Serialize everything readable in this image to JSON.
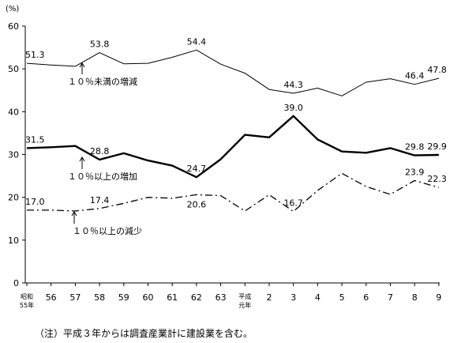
{
  "chart_data": {
    "type": "line",
    "y_unit": "(%)",
    "ylim": [
      0,
      60
    ],
    "yticks": [
      "0",
      "10",
      "20",
      "30",
      "40",
      "50",
      "60"
    ],
    "categories": [
      [
        "昭和",
        "55年"
      ],
      [
        "56"
      ],
      [
        "57"
      ],
      [
        "58"
      ],
      [
        "59"
      ],
      [
        "60"
      ],
      [
        "61"
      ],
      [
        "62"
      ],
      [
        "63"
      ],
      [
        "平成",
        "元年"
      ],
      [
        "2"
      ],
      [
        "3"
      ],
      [
        "4"
      ],
      [
        "5"
      ],
      [
        "6"
      ],
      [
        "7"
      ],
      [
        "8"
      ],
      [
        "9"
      ]
    ],
    "series": [
      {
        "name": "１０％未満の増減",
        "style": "thin",
        "values": [
          51.3,
          50.9,
          50.6,
          53.8,
          51.2,
          51.3,
          52.7,
          54.4,
          51.1,
          49.0,
          45.2,
          44.3,
          45.5,
          43.7,
          46.9,
          47.7,
          46.4,
          47.8
        ]
      },
      {
        "name": "１０％以上の増加",
        "style": "thick",
        "values": [
          31.5,
          31.7,
          32.0,
          28.8,
          30.3,
          28.6,
          27.4,
          24.7,
          28.9,
          34.6,
          34.0,
          39.0,
          33.5,
          30.7,
          30.4,
          31.5,
          29.8,
          29.9
        ]
      },
      {
        "name": "１０％以上の減少",
        "style": "dashdot",
        "values": [
          17.0,
          17.0,
          16.8,
          17.4,
          18.6,
          20.0,
          19.8,
          20.6,
          20.4,
          16.8,
          20.6,
          16.7,
          21.6,
          25.6,
          22.5,
          20.7,
          23.9,
          22.3
        ]
      }
    ],
    "data_labels": [
      {
        "series": 0,
        "index": 0,
        "text": "51.3"
      },
      {
        "series": 0,
        "index": 3,
        "text": "53.8"
      },
      {
        "series": 0,
        "index": 7,
        "text": "54.4"
      },
      {
        "series": 0,
        "index": 11,
        "text": "44.3"
      },
      {
        "series": 0,
        "index": 16,
        "text": "46.4"
      },
      {
        "series": 0,
        "index": 17,
        "text": "47.8"
      },
      {
        "series": 1,
        "index": 0,
        "text": "31.5"
      },
      {
        "series": 1,
        "index": 3,
        "text": "28.8"
      },
      {
        "series": 1,
        "index": 7,
        "text": "24.7"
      },
      {
        "series": 1,
        "index": 11,
        "text": "39.0"
      },
      {
        "series": 1,
        "index": 16,
        "text": "29.8"
      },
      {
        "series": 1,
        "index": 17,
        "text": "29.9"
      },
      {
        "series": 2,
        "index": 0,
        "text": "17.0"
      },
      {
        "series": 2,
        "index": 3,
        "text": "17.4"
      },
      {
        "series": 2,
        "index": 7,
        "text": "20.6"
      },
      {
        "series": 2,
        "index": 11,
        "text": "16.7"
      },
      {
        "series": 2,
        "index": 16,
        "text": "23.9"
      },
      {
        "series": 2,
        "index": 17,
        "text": "22.3"
      }
    ],
    "annotations": [
      {
        "series": 0,
        "text": "１０％未満の増減"
      },
      {
        "series": 1,
        "text": "１０％以上の増加"
      },
      {
        "series": 2,
        "text": "１０％以上の減少"
      }
    ],
    "grid": false,
    "legend": "none"
  },
  "footnote": "（注）平成３年からは調査産業計に建設業を含む。"
}
